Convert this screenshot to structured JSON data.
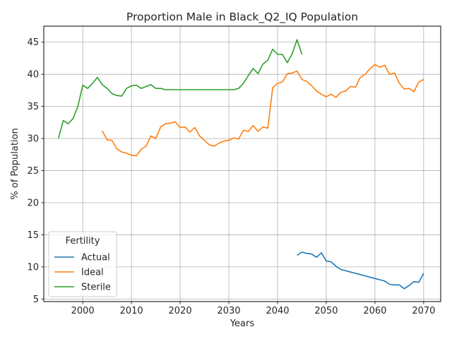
{
  "chart_data": {
    "type": "line",
    "title": "Proportion Male in Black_Q2_IQ Population",
    "xlabel": "Years",
    "ylabel": "% of Population",
    "xlim": [
      1992,
      2073.5
    ],
    "ylim": [
      4.6,
      47.5
    ],
    "xticks": [
      2000,
      2010,
      2020,
      2030,
      2040,
      2050,
      2060,
      2070
    ],
    "yticks": [
      5,
      10,
      15,
      20,
      25,
      30,
      35,
      40,
      45
    ],
    "grid": true,
    "legend": {
      "title": "Fertility",
      "placement": "lower left"
    },
    "series": [
      {
        "name": "Actual",
        "color": "#1f77b4",
        "x": [
          2044,
          2045,
          2046,
          2047,
          2048,
          2049,
          2050,
          2051,
          2052,
          2053,
          2054,
          2055,
          2056,
          2057,
          2058,
          2059,
          2060,
          2061,
          2062,
          2063,
          2064,
          2065,
          2066,
          2067,
          2068,
          2069,
          2070
        ],
        "y": [
          11.8,
          12.3,
          12.1,
          12.0,
          11.5,
          12.2,
          10.9,
          10.8,
          10.1,
          9.6,
          9.4,
          9.2,
          9.0,
          8.8,
          8.6,
          8.4,
          8.2,
          8.0,
          7.8,
          7.3,
          7.2,
          7.2,
          6.6,
          7.1,
          7.7,
          7.6,
          9.0
        ]
      },
      {
        "name": "Ideal",
        "color": "#ff7f0e",
        "x": [
          2004,
          2005,
          2006,
          2007,
          2008,
          2009,
          2010,
          2011,
          2012,
          2013,
          2014,
          2015,
          2016,
          2017,
          2018,
          2019,
          2020,
          2021,
          2022,
          2023,
          2024,
          2025,
          2026,
          2027,
          2028,
          2029,
          2030,
          2031,
          2032,
          2033,
          2034,
          2035,
          2036,
          2037,
          2038,
          2039,
          2040,
          2041,
          2042,
          2043,
          2044,
          2045,
          2046,
          2047,
          2048,
          2049,
          2050,
          2051,
          2052,
          2053,
          2054,
          2055,
          2056,
          2057,
          2058,
          2059,
          2060,
          2061,
          2062,
          2063,
          2064,
          2065,
          2066,
          2067,
          2068,
          2069,
          2070
        ],
        "y": [
          31.2,
          29.8,
          29.7,
          28.4,
          27.9,
          27.7,
          27.4,
          27.3,
          28.3,
          28.8,
          30.4,
          30.0,
          31.8,
          32.3,
          32.4,
          32.6,
          31.7,
          31.8,
          31.0,
          31.7,
          30.4,
          29.7,
          29.0,
          28.8,
          29.3,
          29.6,
          29.7,
          30.1,
          29.9,
          31.3,
          31.1,
          32.0,
          31.1,
          31.8,
          31.6,
          37.9,
          38.6,
          38.8,
          40.1,
          40.2,
          40.5,
          39.2,
          38.9,
          38.2,
          37.4,
          36.9,
          36.5,
          36.9,
          36.4,
          37.2,
          37.4,
          38.1,
          38.0,
          39.5,
          40.0,
          40.9,
          41.5,
          41.1,
          41.4,
          40.0,
          40.2,
          38.6,
          37.7,
          37.8,
          37.3,
          38.8,
          39.2
        ]
      },
      {
        "name": "Sterile",
        "color": "#2ca02c",
        "x": [
          1995,
          1996,
          1997,
          1998,
          1999,
          2000,
          2001,
          2002,
          2003,
          2004,
          2005,
          2006,
          2007,
          2008,
          2009,
          2010,
          2011,
          2012,
          2013,
          2014,
          2015,
          2016,
          2017,
          2018,
          2019,
          2020,
          2021,
          2022,
          2023,
          2024,
          2025,
          2026,
          2027,
          2028,
          2029,
          2030,
          2031,
          2032,
          2033,
          2034,
          2035,
          2036,
          2037,
          2038,
          2039,
          2040,
          2041,
          2042,
          2043,
          2044,
          2045
        ],
        "y": [
          30.0,
          32.8,
          32.3,
          33.1,
          35.0,
          38.3,
          37.8,
          38.6,
          39.5,
          38.4,
          37.8,
          37.0,
          36.7,
          36.6,
          37.8,
          38.2,
          38.3,
          37.8,
          38.1,
          38.4,
          37.8,
          37.8,
          37.6,
          37.6,
          37.6,
          37.6,
          37.6,
          37.6,
          37.6,
          37.6,
          37.6,
          37.6,
          37.6,
          37.6,
          37.6,
          37.6,
          37.6,
          37.8,
          38.6,
          39.8,
          40.9,
          40.1,
          41.6,
          42.2,
          43.9,
          43.1,
          43.1,
          41.8,
          43.2,
          45.4,
          43.1
        ]
      }
    ]
  }
}
